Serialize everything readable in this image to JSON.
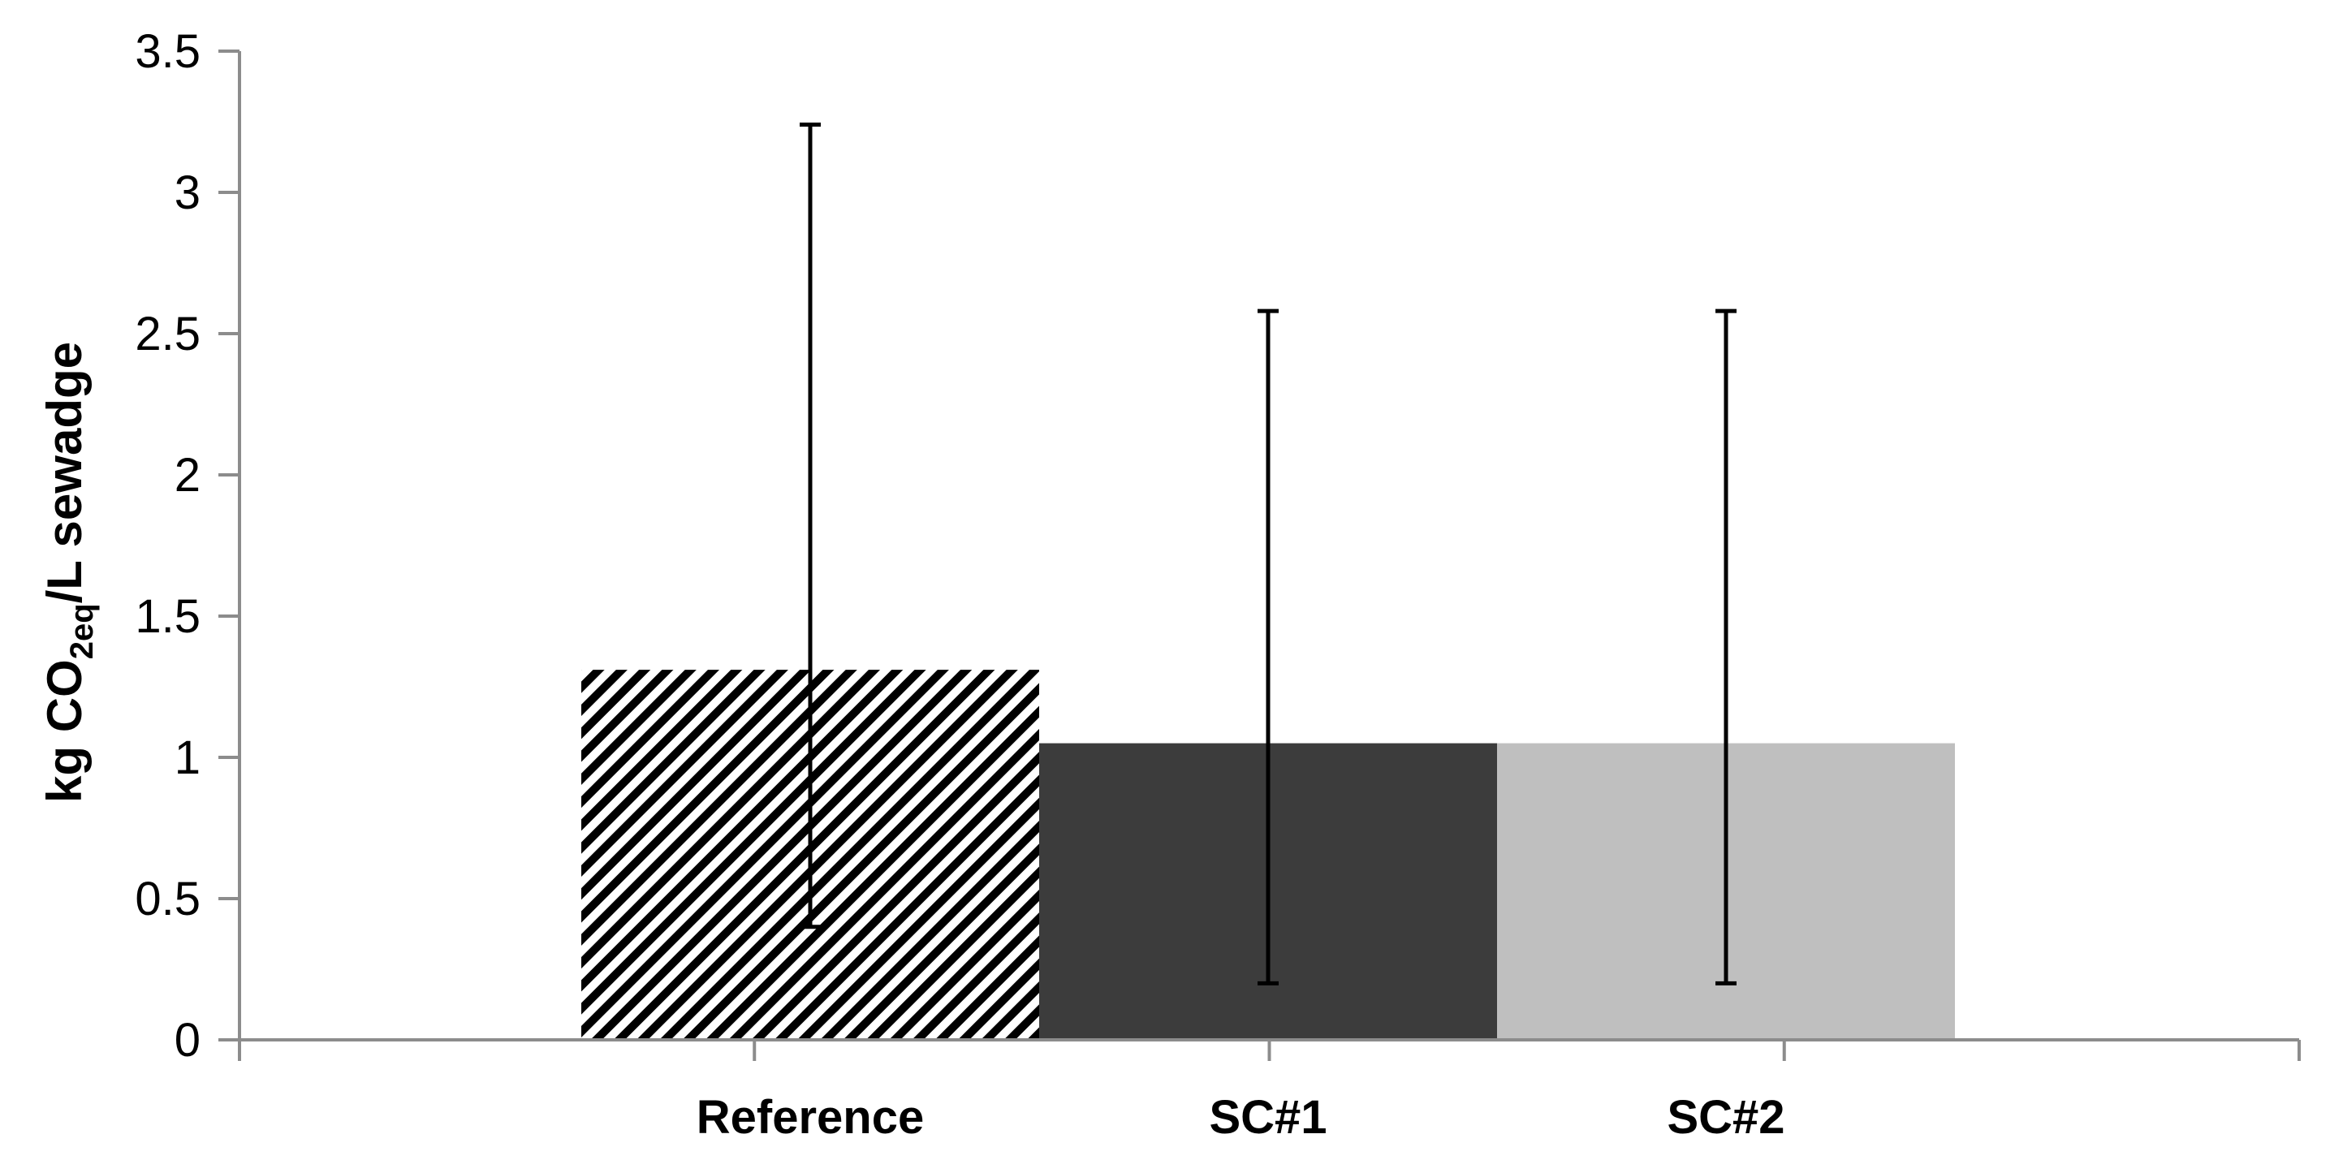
{
  "chart_data": {
    "type": "bar",
    "categories": [
      "Reference",
      "SC#1",
      "SC#2"
    ],
    "values": [
      1.31,
      1.05,
      1.05
    ],
    "error_bars": [
      {
        "low": 0.4,
        "high": 3.24
      },
      {
        "low": 0.2,
        "high": 2.58
      },
      {
        "low": 0.2,
        "high": 2.58
      }
    ],
    "fills": [
      "diagonal-hatch",
      "#3c3c3c",
      "#bfbfbf"
    ],
    "ylabel": {
      "prefix": "kg CO",
      "sub": "2eq",
      "suffix": "/L sewadge"
    },
    "xlabel": "",
    "ylim": [
      0,
      3.5
    ],
    "yticks": [
      "0",
      "0.5",
      "1",
      "1.5",
      "2",
      "2.5",
      "3",
      "3.5"
    ],
    "grid": false,
    "legend": "none",
    "axis_color": "#8c8c8c",
    "error_bar_color": "#000000"
  }
}
